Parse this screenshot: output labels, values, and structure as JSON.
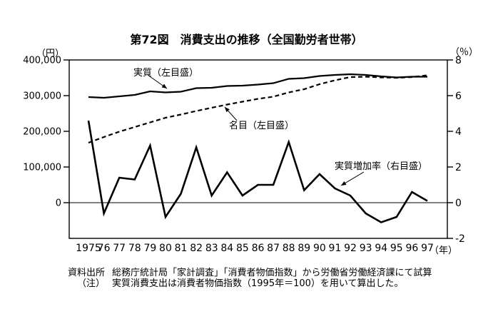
{
  "title": "第72図　消費支出の推移（全国勤労者世帯）",
  "axes": {
    "left_unit": "（円）",
    "right_unit": "（％）",
    "x_unit": "（年）",
    "left_ticks": [
      {
        "label": "400,000",
        "value": 400000
      },
      {
        "label": "300,000",
        "value": 300000
      },
      {
        "label": "200,000",
        "value": 200000
      },
      {
        "label": "100,000",
        "value": 100000
      },
      {
        "label": "0",
        "value": 0
      }
    ],
    "right_ticks": [
      {
        "label": "8",
        "value": 8
      },
      {
        "label": "6",
        "value": 6
      },
      {
        "label": "4",
        "value": 4
      },
      {
        "label": "2",
        "value": 2
      },
      {
        "label": "0",
        "value": 0
      },
      {
        "label": "-2",
        "value": -2
      }
    ],
    "x_tick_labels": [
      "1975",
      "76",
      "77",
      "78",
      "79",
      "80",
      "81",
      "82",
      "83",
      "84",
      "85",
      "86",
      "87",
      "88",
      "89",
      "90",
      "91",
      "92",
      "93",
      "94",
      "95",
      "96",
      "97"
    ]
  },
  "series_labels": {
    "real": "実質（左目盛）",
    "nominal": "名目（左目盛）",
    "growth": "実質増加率（右目盛）"
  },
  "notes": {
    "source_label": "資料出所",
    "source_text": "総務庁統計局「家計調査」「消費者物価指数」から労働省労働経済課にて試算",
    "note_label": "（注）",
    "note_text": "実質消費支出は消費者物価指数（1995年＝100）を用いて算出した。"
  },
  "colors": {
    "ink": "#000000",
    "background": "#ffffff"
  },
  "chart_data": {
    "type": "line",
    "title": "第72図　消費支出の推移（全国勤労者世帯）",
    "x": [
      1975,
      1976,
      1977,
      1978,
      1979,
      1980,
      1981,
      1982,
      1983,
      1984,
      1985,
      1986,
      1987,
      1988,
      1989,
      1990,
      1991,
      1992,
      1993,
      1994,
      1995,
      1996,
      1997
    ],
    "left_axis": {
      "unit": "円",
      "range": [
        0,
        400000
      ],
      "ticks": [
        0,
        100000,
        200000,
        300000,
        400000
      ]
    },
    "right_axis": {
      "unit": "%",
      "range": [
        -2,
        8
      ],
      "ticks": [
        -2,
        0,
        2,
        4,
        6,
        8
      ]
    },
    "grid": "zero-line-only",
    "legend_position": "inline-annotations",
    "series": [
      {
        "name": "実質（左目盛）",
        "axis": "left",
        "style": "solid",
        "values": [
          296000,
          294000,
          298000,
          302000,
          312000,
          309000,
          311000,
          321000,
          322000,
          327000,
          328000,
          331000,
          335000,
          347000,
          349000,
          355000,
          358000,
          360000,
          358000,
          354000,
          351000,
          353000,
          353000
        ]
      },
      {
        "name": "名目（左目盛）",
        "axis": "left",
        "style": "dashed",
        "values": [
          168000,
          184000,
          199000,
          212000,
          225000,
          238000,
          247000,
          257000,
          266000,
          275000,
          283000,
          291000,
          297000,
          309000,
          318000,
          332000,
          343000,
          352000,
          353000,
          351000,
          350000,
          352000,
          357000
        ]
      },
      {
        "name": "実質増加率（右目盛）",
        "axis": "right",
        "style": "solid",
        "values": [
          4.6,
          -0.6,
          1.4,
          1.3,
          3.2,
          -0.8,
          0.5,
          3.1,
          0.4,
          1.7,
          0.4,
          1.0,
          1.0,
          3.4,
          0.7,
          1.6,
          0.8,
          0.4,
          -0.6,
          -1.1,
          -0.8,
          0.6,
          0.1
        ]
      }
    ]
  }
}
